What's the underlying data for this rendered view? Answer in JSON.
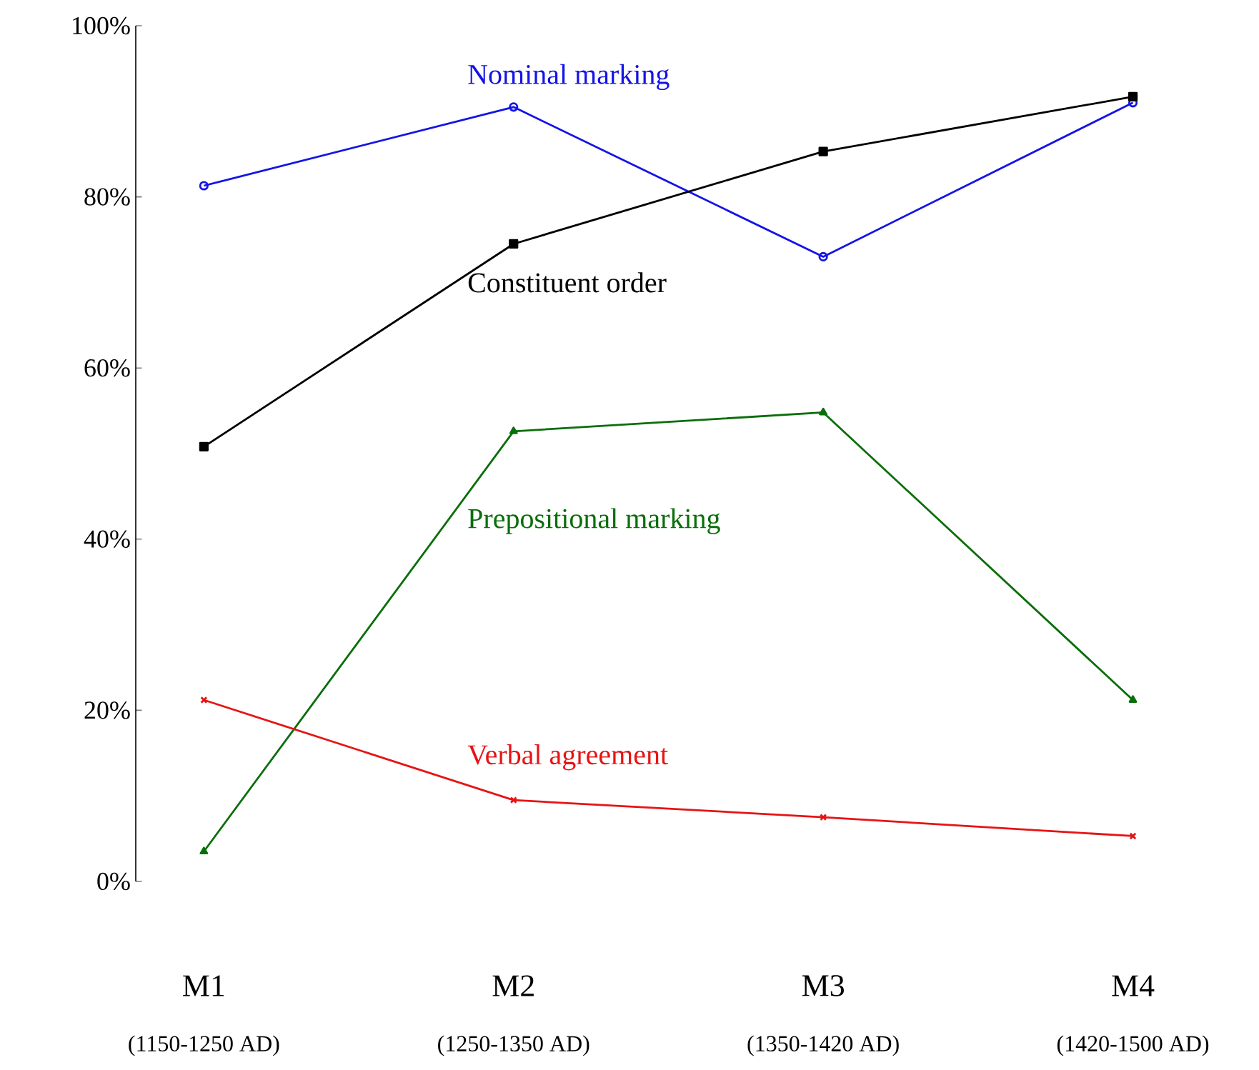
{
  "chart_data": {
    "type": "line",
    "categories": [
      "M1",
      "M2",
      "M3",
      "M4"
    ],
    "series": [
      {
        "name": "Nominal marking",
        "color": "#1414e6",
        "marker": "circle",
        "values": [
          81.3,
          90.5,
          73.0,
          91.0
        ]
      },
      {
        "name": "Constituent order",
        "color": "#000000",
        "marker": "square",
        "values": [
          50.8,
          74.5,
          85.3,
          91.7
        ]
      },
      {
        "name": "Prepositional marking",
        "color": "#0a6e0a",
        "marker": "triangle",
        "values": [
          3.5,
          52.6,
          54.8,
          21.2
        ]
      },
      {
        "name": "Verbal agreement",
        "color": "#e61414",
        "marker": "cross",
        "values": [
          21.2,
          9.5,
          7.5,
          5.3
        ]
      }
    ],
    "ylim": [
      0,
      100
    ],
    "yticks": [
      {
        "value": 0,
        "label": "0%"
      },
      {
        "value": 20,
        "label": "20%"
      },
      {
        "value": 40,
        "label": "40%"
      },
      {
        "value": 60,
        "label": "60%"
      },
      {
        "value": 80,
        "label": "80%"
      },
      {
        "value": 100,
        "label": "100%"
      }
    ],
    "annotations": [
      "(1150-1250 AD)",
      "(1250-1350 AD)",
      "(1350-1420 AD)",
      "(1420-1500 AD)"
    ],
    "grid": false,
    "legend": false,
    "line_style": "solid"
  }
}
